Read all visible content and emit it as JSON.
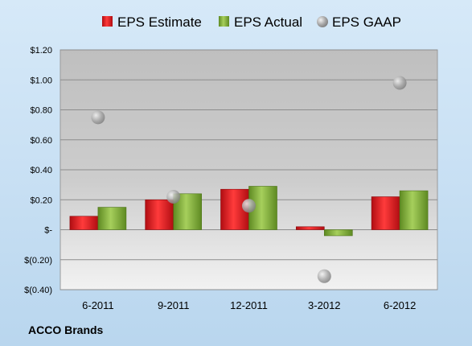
{
  "chart_data": {
    "type": "bar",
    "categories": [
      "6-2011",
      "9-2011",
      "12-2011",
      "3-2012",
      "6-2012"
    ],
    "series": [
      {
        "name": "EPS Estimate",
        "kind": "bar",
        "color": "#e3111b",
        "values": [
          0.09,
          0.2,
          0.27,
          0.02,
          0.22
        ]
      },
      {
        "name": "EPS Actual",
        "kind": "bar",
        "color": "#86b23b",
        "values": [
          0.15,
          0.24,
          0.29,
          -0.04,
          0.26
        ]
      },
      {
        "name": "EPS GAAP",
        "kind": "scatter",
        "color": "#a6a6a6",
        "values": [
          0.75,
          0.22,
          0.16,
          -0.31,
          0.98
        ]
      }
    ],
    "ylim": [
      -0.4,
      1.2
    ],
    "yticks": [
      1.2,
      1.0,
      0.8,
      0.6,
      0.4,
      0.2,
      0,
      -0.2,
      -0.4
    ],
    "ytick_labels": [
      "$1.20",
      "$1.00",
      "$0.80",
      "$0.60",
      "$0.40",
      "$0.20",
      "$-",
      "$(0.20)",
      "$(0.40)"
    ],
    "grid": true,
    "legend": "top"
  },
  "footer": {
    "company": "ACCO Brands"
  }
}
